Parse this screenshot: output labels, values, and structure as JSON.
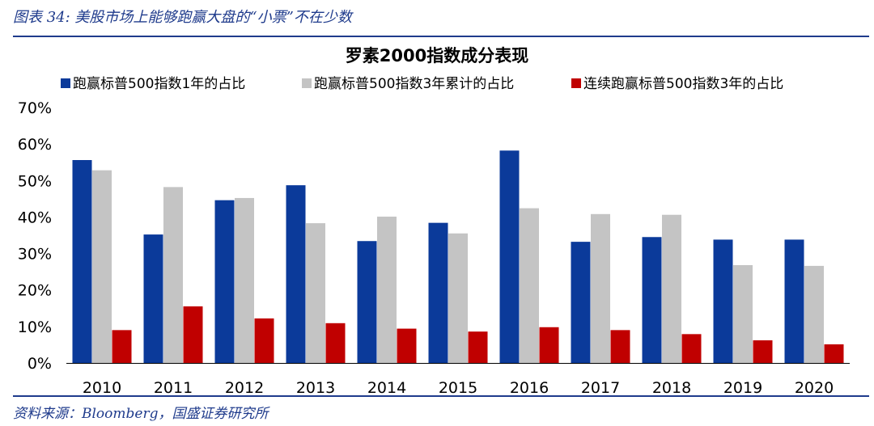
{
  "figure_caption": "图表 34: 美股市场上能够跑赢大盘的“小票”不在少数",
  "source_note": "资料来源：Bloomberg，国盛证券研究所",
  "chart_data": {
    "type": "bar",
    "title": "罗素2000指数成分表现",
    "xlabel": "",
    "ylabel": "",
    "ylim": [
      0,
      70
    ],
    "yticks": [
      "0%",
      "10%",
      "20%",
      "30%",
      "40%",
      "50%",
      "60%",
      "70%"
    ],
    "grid": false,
    "legend_position": "top",
    "categories": [
      "2010",
      "2011",
      "2012",
      "2013",
      "2014",
      "2015",
      "2016",
      "2017",
      "2018",
      "2019",
      "2020"
    ],
    "series": [
      {
        "name": "跑赢标普500指数1年的占比",
        "color": "#0b3a9a",
        "values": [
          55.6,
          35.2,
          44.6,
          48.7,
          33.4,
          38.4,
          58.2,
          33.2,
          34.5,
          33.8,
          33.8
        ]
      },
      {
        "name": "跑赢标普500指数3年累计的占比",
        "color": "#c4c4c4",
        "values": [
          52.8,
          48.2,
          45.2,
          38.3,
          40.1,
          35.5,
          42.4,
          40.8,
          40.6,
          26.8,
          26.6
        ]
      },
      {
        "name": "连续跑赢标普500指数3年的占比",
        "color": "#c00000",
        "values": [
          9.0,
          15.5,
          12.2,
          10.9,
          9.4,
          8.6,
          9.8,
          9.0,
          7.9,
          6.2,
          5.1
        ]
      }
    ]
  }
}
